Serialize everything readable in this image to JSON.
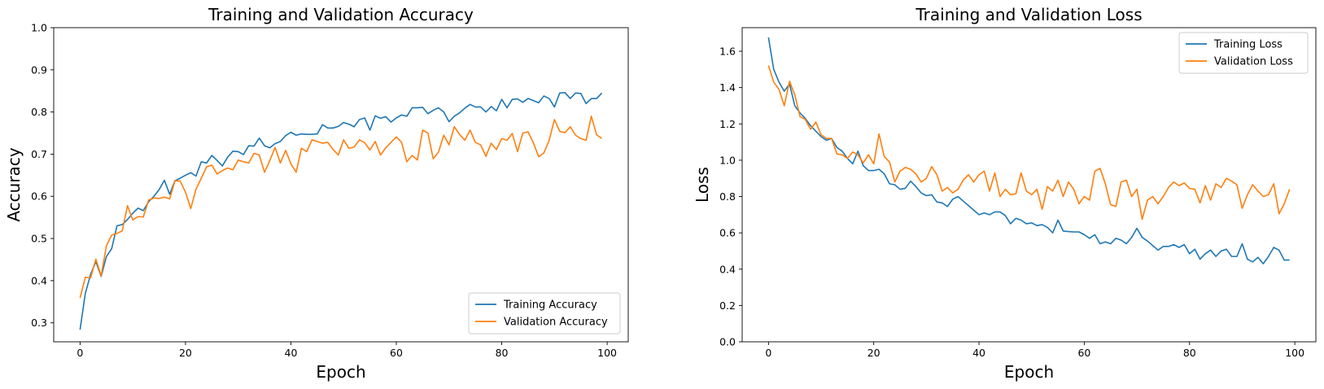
{
  "chart_data": [
    {
      "type": "line",
      "title": "Training and Validation Accuracy",
      "xlabel": "Epoch",
      "ylabel": "Accuracy",
      "xlim": [
        -5,
        104
      ],
      "ylim": [
        0.255,
        1.0
      ],
      "xticks": [
        0,
        20,
        40,
        60,
        80,
        100
      ],
      "yticks": [
        0.3,
        0.4,
        0.5,
        0.6,
        0.7,
        0.8,
        0.9,
        1.0
      ],
      "ytick_format": 1,
      "grid": false,
      "legend_position": "lower-right",
      "x": [
        0,
        1,
        2,
        3,
        4,
        5,
        6,
        7,
        8,
        9,
        10,
        11,
        12,
        13,
        14,
        15,
        16,
        17,
        18,
        19,
        20,
        21,
        22,
        23,
        24,
        25,
        26,
        27,
        28,
        29,
        30,
        31,
        32,
        33,
        34,
        35,
        36,
        37,
        38,
        39,
        40,
        41,
        42,
        43,
        44,
        45,
        46,
        47,
        48,
        49,
        50,
        51,
        52,
        53,
        54,
        55,
        56,
        57,
        58,
        59,
        60,
        61,
        62,
        63,
        64,
        65,
        66,
        67,
        68,
        69,
        70,
        71,
        72,
        73,
        74,
        75,
        76,
        77,
        78,
        79,
        80,
        81,
        82,
        83,
        84,
        85,
        86,
        87,
        88,
        89,
        90,
        91,
        92,
        93,
        94,
        95,
        96,
        97,
        98,
        99
      ],
      "series": [
        {
          "name": "Training Accuracy",
          "color": "#1f77b4",
          "values": [
            0.284,
            0.37,
            0.415,
            0.445,
            0.41,
            0.457,
            0.476,
            0.53,
            0.533,
            0.545,
            0.56,
            0.572,
            0.566,
            0.587,
            0.6,
            0.616,
            0.638,
            0.605,
            0.637,
            0.643,
            0.65,
            0.656,
            0.648,
            0.682,
            0.679,
            0.697,
            0.685,
            0.672,
            0.693,
            0.707,
            0.706,
            0.699,
            0.72,
            0.719,
            0.738,
            0.72,
            0.715,
            0.725,
            0.73,
            0.744,
            0.752,
            0.745,
            0.748,
            0.747,
            0.747,
            0.748,
            0.77,
            0.762,
            0.762,
            0.766,
            0.775,
            0.771,
            0.765,
            0.782,
            0.786,
            0.757,
            0.791,
            0.785,
            0.789,
            0.776,
            0.786,
            0.793,
            0.79,
            0.81,
            0.81,
            0.811,
            0.796,
            0.804,
            0.81,
            0.8,
            0.777,
            0.79,
            0.798,
            0.809,
            0.818,
            0.812,
            0.812,
            0.8,
            0.813,
            0.803,
            0.83,
            0.81,
            0.83,
            0.831,
            0.823,
            0.832,
            0.827,
            0.822,
            0.838,
            0.832,
            0.812,
            0.845,
            0.846,
            0.832,
            0.845,
            0.844,
            0.82,
            0.832,
            0.832,
            0.845
          ]
        },
        {
          "name": "Validation Accuracy",
          "color": "#ff7f0e",
          "values": [
            0.359,
            0.408,
            0.407,
            0.451,
            0.411,
            0.483,
            0.508,
            0.512,
            0.518,
            0.578,
            0.544,
            0.552,
            0.551,
            0.591,
            0.596,
            0.595,
            0.598,
            0.594,
            0.637,
            0.636,
            0.61,
            0.571,
            0.617,
            0.643,
            0.67,
            0.674,
            0.653,
            0.661,
            0.667,
            0.663,
            0.686,
            0.682,
            0.679,
            0.702,
            0.698,
            0.657,
            0.685,
            0.716,
            0.679,
            0.709,
            0.677,
            0.657,
            0.714,
            0.706,
            0.734,
            0.73,
            0.726,
            0.728,
            0.711,
            0.698,
            0.734,
            0.714,
            0.717,
            0.734,
            0.727,
            0.71,
            0.73,
            0.698,
            0.715,
            0.728,
            0.741,
            0.728,
            0.682,
            0.697,
            0.686,
            0.757,
            0.75,
            0.689,
            0.705,
            0.745,
            0.722,
            0.765,
            0.747,
            0.733,
            0.757,
            0.728,
            0.722,
            0.695,
            0.726,
            0.711,
            0.737,
            0.733,
            0.749,
            0.706,
            0.75,
            0.753,
            0.727,
            0.694,
            0.703,
            0.733,
            0.782,
            0.754,
            0.751,
            0.765,
            0.745,
            0.737,
            0.733,
            0.79,
            0.746,
            0.737
          ]
        }
      ]
    },
    {
      "type": "line",
      "title": "Training and Validation Loss",
      "xlabel": "Epoch",
      "ylabel": "Loss",
      "xlim": [
        -5,
        104
      ],
      "ylim": [
        0.0,
        1.73
      ],
      "xticks": [
        0,
        20,
        40,
        60,
        80,
        100
      ],
      "yticks": [
        0.0,
        0.2,
        0.4,
        0.6,
        0.8,
        1.0,
        1.2,
        1.4,
        1.6
      ],
      "ytick_format": 1,
      "grid": false,
      "legend_position": "upper-right",
      "x": [
        0,
        1,
        2,
        3,
        4,
        5,
        6,
        7,
        8,
        9,
        10,
        11,
        12,
        13,
        14,
        15,
        16,
        17,
        18,
        19,
        20,
        21,
        22,
        23,
        24,
        25,
        26,
        27,
        28,
        29,
        30,
        31,
        32,
        33,
        34,
        35,
        36,
        37,
        38,
        39,
        40,
        41,
        42,
        43,
        44,
        45,
        46,
        47,
        48,
        49,
        50,
        51,
        52,
        53,
        54,
        55,
        56,
        57,
        58,
        59,
        60,
        61,
        62,
        63,
        64,
        65,
        66,
        67,
        68,
        69,
        70,
        71,
        72,
        73,
        74,
        75,
        76,
        77,
        78,
        79,
        80,
        81,
        82,
        83,
        84,
        85,
        86,
        87,
        88,
        89,
        90,
        91,
        92,
        93,
        94,
        95,
        96,
        97,
        98,
        99
      ],
      "series": [
        {
          "name": "Training Loss",
          "color": "#1f77b4",
          "values": [
            1.676,
            1.5,
            1.43,
            1.38,
            1.42,
            1.3,
            1.26,
            1.23,
            1.19,
            1.16,
            1.13,
            1.11,
            1.12,
            1.07,
            1.05,
            1.01,
            0.98,
            1.05,
            0.97,
            0.943,
            0.943,
            0.95,
            0.925,
            0.87,
            0.865,
            0.84,
            0.845,
            0.885,
            0.855,
            0.82,
            0.805,
            0.81,
            0.77,
            0.765,
            0.745,
            0.785,
            0.8,
            0.775,
            0.75,
            0.725,
            0.7,
            0.71,
            0.7,
            0.715,
            0.715,
            0.695,
            0.65,
            0.68,
            0.67,
            0.65,
            0.655,
            0.64,
            0.645,
            0.63,
            0.6,
            0.67,
            0.61,
            0.607,
            0.605,
            0.605,
            0.59,
            0.57,
            0.59,
            0.54,
            0.55,
            0.54,
            0.57,
            0.56,
            0.54,
            0.575,
            0.625,
            0.575,
            0.555,
            0.53,
            0.505,
            0.525,
            0.525,
            0.535,
            0.52,
            0.535,
            0.485,
            0.51,
            0.455,
            0.485,
            0.505,
            0.47,
            0.5,
            0.51,
            0.47,
            0.47,
            0.54,
            0.455,
            0.44,
            0.465,
            0.43,
            0.47,
            0.52,
            0.505,
            0.45,
            0.45
          ]
        },
        {
          "name": "Validation Loss",
          "color": "#ff7f0e",
          "values": [
            1.522,
            1.43,
            1.39,
            1.3,
            1.435,
            1.36,
            1.24,
            1.225,
            1.17,
            1.21,
            1.14,
            1.12,
            1.12,
            1.035,
            1.03,
            1.01,
            1.045,
            1.03,
            0.985,
            1.03,
            0.98,
            1.145,
            1.02,
            0.99,
            0.88,
            0.94,
            0.96,
            0.95,
            0.925,
            0.88,
            0.9,
            0.965,
            0.92,
            0.83,
            0.85,
            0.82,
            0.84,
            0.89,
            0.92,
            0.88,
            0.92,
            0.94,
            0.83,
            0.93,
            0.8,
            0.84,
            0.81,
            0.815,
            0.93,
            0.83,
            0.81,
            0.84,
            0.73,
            0.855,
            0.83,
            0.89,
            0.8,
            0.88,
            0.84,
            0.76,
            0.8,
            0.78,
            0.94,
            0.955,
            0.87,
            0.755,
            0.745,
            0.88,
            0.89,
            0.8,
            0.84,
            0.675,
            0.78,
            0.8,
            0.76,
            0.8,
            0.85,
            0.88,
            0.86,
            0.875,
            0.845,
            0.84,
            0.765,
            0.86,
            0.78,
            0.87,
            0.85,
            0.9,
            0.885,
            0.865,
            0.735,
            0.81,
            0.865,
            0.83,
            0.8,
            0.81,
            0.87,
            0.705,
            0.76,
            0.84
          ]
        }
      ]
    }
  ]
}
